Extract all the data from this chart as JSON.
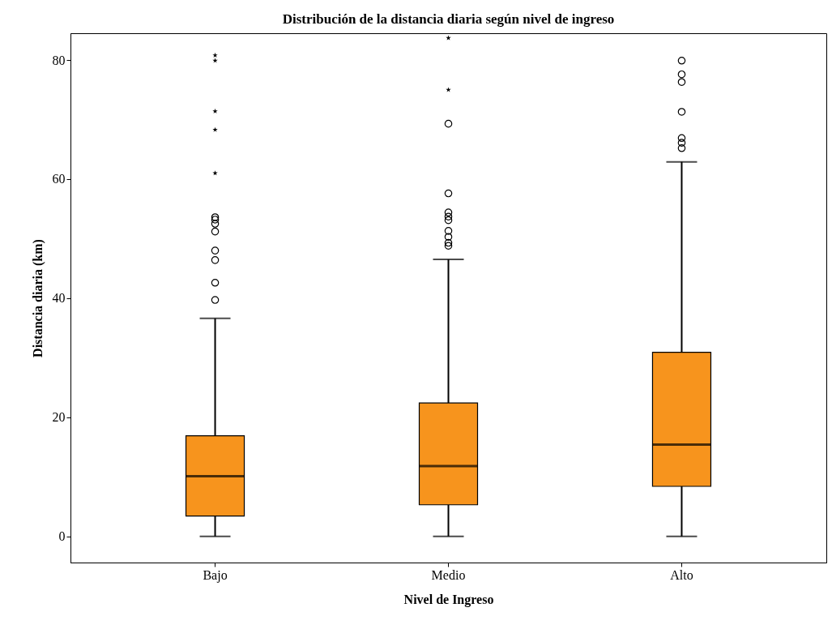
{
  "chart_data": {
    "type": "box",
    "title": "Distribución de la distancia diaria según nivel de ingreso",
    "xlabel": "Nivel de Ingreso",
    "ylabel": "Distancia diaria (km)",
    "categories": [
      "Bajo",
      "Medio",
      "Alto"
    ],
    "ylim": [
      -4.4,
      84.5
    ],
    "yticks": [
      0,
      20,
      40,
      60,
      80
    ],
    "series": [
      {
        "type": "box",
        "color": "#f7941d",
        "boxes": [
          {
            "low": 0,
            "q1": 3.4,
            "median": 10.1,
            "q3": 16.9,
            "high": 36.6,
            "outliers": [
              39.7,
              42.6,
              46.4,
              48.0,
              51.2,
              52.5,
              53.2,
              53.6
            ]
          },
          {
            "low": 0,
            "q1": 5.3,
            "median": 11.8,
            "q3": 22.4,
            "high": 46.5,
            "outliers": [
              48.8,
              49.3,
              50.3,
              51.3,
              53.1,
              53.7,
              54.4,
              57.6,
              69.3
            ]
          },
          {
            "low": 0,
            "q1": 8.4,
            "median": 15.4,
            "q3": 30.9,
            "high": 62.9,
            "outliers": [
              65.2,
              66.1,
              66.9,
              71.3,
              76.3,
              77.6,
              79.9
            ]
          }
        ]
      },
      {
        "type": "scatter",
        "color": "#000000",
        "marker": "star",
        "x": [
          "Bajo",
          "Bajo",
          "Bajo",
          "Bajo",
          "Bajo",
          "Medio",
          "Medio"
        ],
        "values": [
          61.0,
          68.3,
          71.4,
          79.9,
          80.8,
          75.0,
          83.7
        ]
      }
    ]
  }
}
